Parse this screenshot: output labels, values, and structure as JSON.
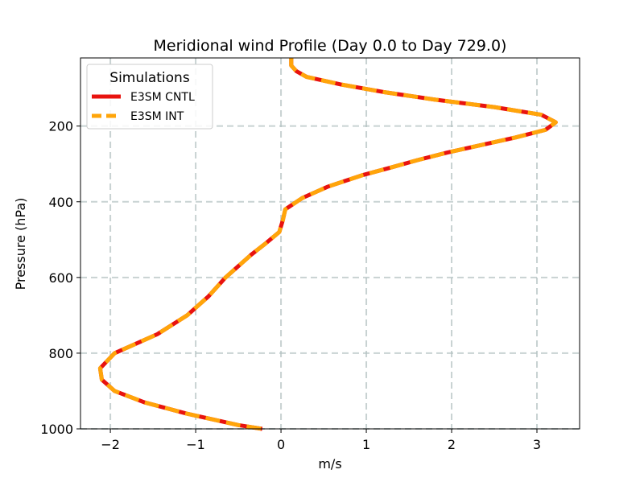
{
  "chart_data": {
    "type": "line",
    "title": "Meridional wind Profile (Day 0.0 to Day 729.0)",
    "xlabel": "m/s",
    "ylabel": "Pressure (hPa)",
    "xlim": [
      -2.35,
      3.5
    ],
    "ylim": [
      1000,
      20
    ],
    "y_inverted": true,
    "grid": true,
    "x_ticks": [
      -2,
      -1,
      0,
      1,
      2,
      3
    ],
    "x_tick_labels": [
      "−2",
      "−1",
      "0",
      "1",
      "2",
      "3"
    ],
    "y_ticks": [
      200,
      400,
      600,
      800,
      1000
    ],
    "y_tick_labels": [
      "200",
      "400",
      "600",
      "800",
      "1000"
    ],
    "legend": {
      "title": "Simulations",
      "position": "top-left"
    },
    "pressure": [
      20,
      40,
      55,
      70,
      90,
      110,
      130,
      150,
      170,
      190,
      210,
      230,
      250,
      270,
      290,
      310,
      330,
      345,
      360,
      375,
      390,
      420,
      450,
      480,
      495,
      510,
      540,
      570,
      600,
      650,
      700,
      750,
      800,
      840,
      870,
      900,
      930,
      960,
      990,
      1000
    ],
    "series": [
      {
        "name": "E3SM CNTL",
        "color": "#e8130f",
        "style": "solid",
        "values": [
          0.12,
          0.12,
          0.18,
          0.3,
          0.7,
          1.2,
          1.8,
          2.5,
          3.05,
          3.22,
          3.1,
          2.75,
          2.35,
          1.95,
          1.6,
          1.28,
          0.95,
          0.75,
          0.55,
          0.4,
          0.25,
          0.05,
          0.02,
          -0.02,
          -0.1,
          -0.18,
          -0.35,
          -0.5,
          -0.65,
          -0.85,
          -1.1,
          -1.45,
          -1.95,
          -2.12,
          -2.1,
          -1.95,
          -1.6,
          -1.1,
          -0.5,
          -0.22
        ]
      },
      {
        "name": "E3SM INT",
        "color": "#ffa50a",
        "style": "dashed",
        "values": [
          0.12,
          0.12,
          0.18,
          0.3,
          0.7,
          1.2,
          1.8,
          2.5,
          3.05,
          3.22,
          3.1,
          2.75,
          2.35,
          1.95,
          1.6,
          1.28,
          0.95,
          0.75,
          0.55,
          0.4,
          0.25,
          0.05,
          0.02,
          -0.02,
          -0.1,
          -0.18,
          -0.35,
          -0.5,
          -0.65,
          -0.85,
          -1.1,
          -1.45,
          -1.95,
          -2.12,
          -2.1,
          -1.95,
          -1.6,
          -1.1,
          -0.5,
          -0.22
        ]
      }
    ]
  }
}
